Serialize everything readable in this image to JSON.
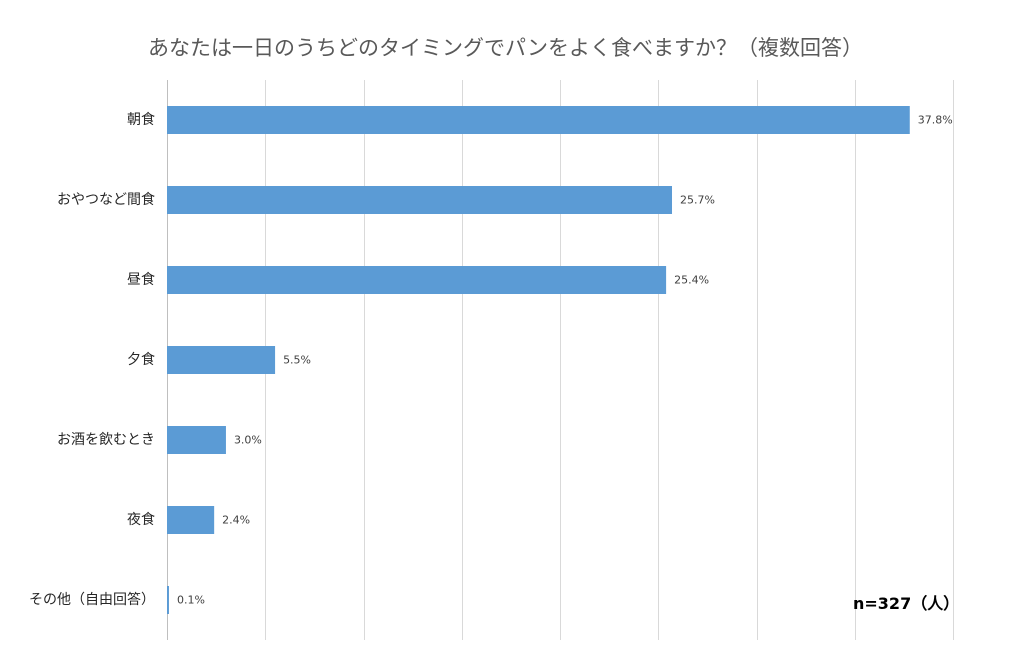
{
  "chart_data": {
    "type": "bar",
    "orientation": "horizontal",
    "title": "あなたは一日のうちどのタイミングでパンをよく食べますか？（複数回答）",
    "categories": [
      "朝食",
      "おやつなど間食",
      "昼食",
      "夕食",
      "お酒を飲むとき",
      "夜食",
      "その他（自由回答）"
    ],
    "values": [
      37.8,
      25.7,
      25.4,
      5.5,
      3.0,
      2.4,
      0.1
    ],
    "data_labels": [
      "37.8%",
      "25.7%",
      "25.4%",
      "5.5%",
      "3.0%",
      "2.4%",
      "0.1%"
    ],
    "value_unit": "%",
    "xlim": [
      0,
      40
    ],
    "grid": true,
    "xlabel": "",
    "ylabel": "",
    "bar_color": "#5B9BD5",
    "annotation": "n=327（人）"
  }
}
